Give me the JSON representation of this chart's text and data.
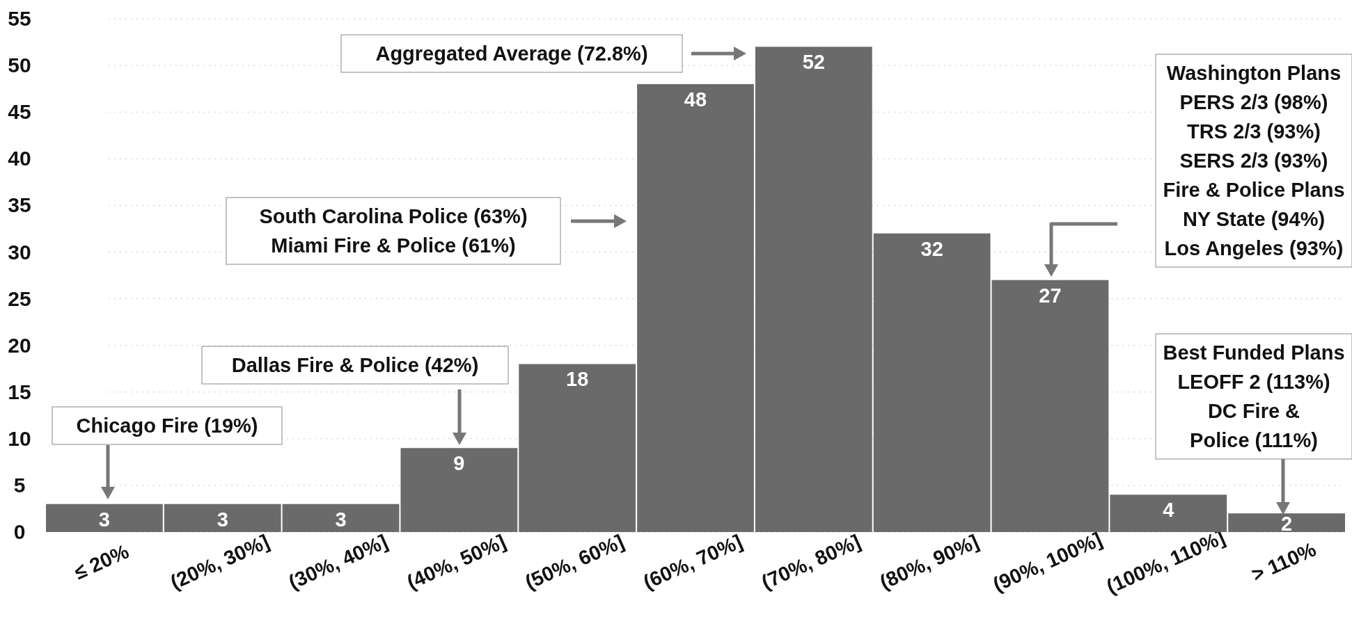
{
  "chart_data": {
    "type": "bar",
    "categories": [
      "≤ 20%",
      "(20%, 30%]",
      "(30%, 40%]",
      "(40%, 50%]",
      "(50%, 60%]",
      "(60%, 70%]",
      "(70%, 80%]",
      "(80%, 90%]",
      "(90%, 100%]",
      "(100%, 110%]",
      "> 110%"
    ],
    "values": [
      3,
      3,
      3,
      9,
      18,
      48,
      52,
      32,
      27,
      4,
      2
    ],
    "color": "#6a6a6a",
    "ylim": [
      0,
      55
    ],
    "yticks": [
      0,
      5,
      10,
      15,
      20,
      25,
      30,
      35,
      40,
      45,
      50,
      55
    ],
    "grid": "y",
    "data_labels": true,
    "annotations": [
      "Chicago Fire (19%)",
      "Dallas Fire & Police (42%)",
      "South Carolina Police (63%)\nMiami Fire & Police (61%)",
      "Aggregated Average (72.8%)",
      "Washington Plans\nPERS 2/3 (98%)\nTRS 2/3 (93%)\nSERS 2/3 (93%)\nFire & Police Plans\nNY State (94%)\nLos Angeles (93%)",
      "Best Funded Plans\nLEOFF 2 (113%)\nDC Fire &\nPolice (111%)"
    ]
  }
}
